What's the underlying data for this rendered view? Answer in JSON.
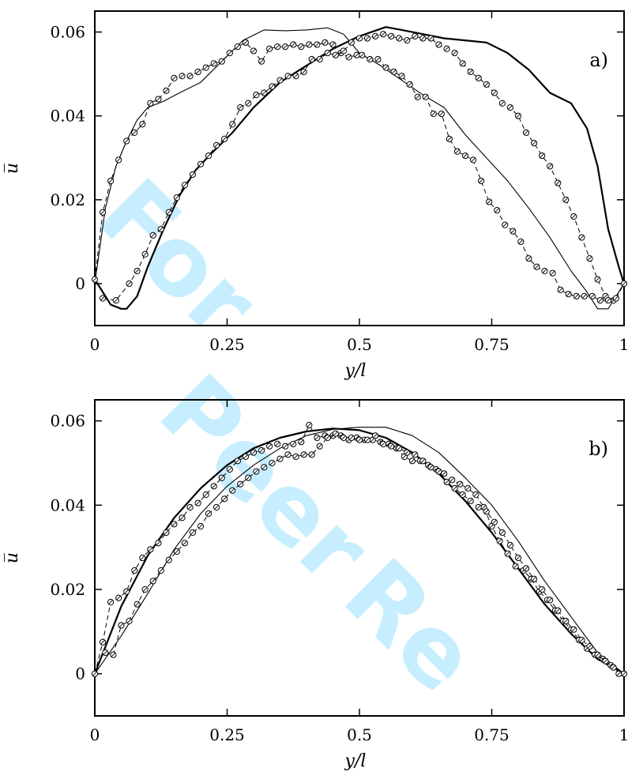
{
  "watermark": {
    "line1": "For",
    "line2": "Peer",
    "line3": "Re"
  },
  "chart_data": [
    {
      "type": "line",
      "panel_label": "a)",
      "xlabel": "y/l",
      "ylabel": "u̅",
      "xlim": [
        0,
        1
      ],
      "ylim": [
        -0.01,
        0.065
      ],
      "x_ticks": [
        "0",
        "0.25",
        "0.5",
        "0.75",
        "1"
      ],
      "x_tick_values": [
        0,
        0.25,
        0.5,
        0.75,
        1
      ],
      "y_ticks": [
        "0",
        "0.02",
        "0.04",
        "0.06"
      ],
      "y_tick_values": [
        0,
        0.02,
        0.04,
        0.06
      ],
      "grid": false,
      "series": [
        {
          "style": "thick",
          "x": [
            0,
            0.03,
            0.05,
            0.06,
            0.08,
            0.1,
            0.13,
            0.16,
            0.19,
            0.22,
            0.26,
            0.3,
            0.35,
            0.4,
            0.45,
            0.5,
            0.55,
            0.58,
            0.62,
            0.66,
            0.7,
            0.74,
            0.78,
            0.82,
            0.86,
            0.9,
            0.93,
            0.95,
            0.97,
            0.99,
            1.0
          ],
          "y": [
            0.001,
            -0.005,
            -0.006,
            -0.006,
            -0.003,
            0.004,
            0.013,
            0.021,
            0.027,
            0.031,
            0.036,
            0.042,
            0.048,
            0.052,
            0.056,
            0.059,
            0.0612,
            0.0605,
            0.0595,
            0.0585,
            0.058,
            0.0575,
            0.055,
            0.051,
            0.0455,
            0.043,
            0.037,
            0.028,
            0.013,
            0.004,
            0.0
          ]
        },
        {
          "style": "thin",
          "x": [
            0,
            0.02,
            0.04,
            0.06,
            0.08,
            0.1,
            0.13,
            0.16,
            0.2,
            0.24,
            0.28,
            0.32,
            0.36,
            0.4,
            0.44,
            0.47,
            0.5,
            0.54,
            0.58,
            0.62,
            0.66,
            0.7,
            0.74,
            0.78,
            0.82,
            0.86,
            0.9,
            0.93,
            0.95,
            0.97,
            1.0
          ],
          "y": [
            0.0,
            0.018,
            0.028,
            0.034,
            0.039,
            0.042,
            0.0435,
            0.0455,
            0.048,
            0.053,
            0.058,
            0.0605,
            0.0603,
            0.0605,
            0.061,
            0.0595,
            0.055,
            0.052,
            0.0485,
            0.045,
            0.042,
            0.0355,
            0.03,
            0.0245,
            0.018,
            0.011,
            0.003,
            -0.002,
            -0.006,
            -0.006,
            0.0
          ]
        },
        {
          "style": "dashed-circles",
          "x": [
            0,
            0.015,
            0.03,
            0.045,
            0.06,
            0.075,
            0.09,
            0.105,
            0.12,
            0.135,
            0.15,
            0.165,
            0.18,
            0.195,
            0.21,
            0.225,
            0.24,
            0.255,
            0.27,
            0.285,
            0.3,
            0.315,
            0.33,
            0.345,
            0.36,
            0.375,
            0.39,
            0.405,
            0.42,
            0.435,
            0.45,
            0.465,
            0.48,
            0.495
          ],
          "y": [
            0.001,
            0.017,
            0.0245,
            0.0295,
            0.034,
            0.036,
            0.038,
            0.043,
            0.044,
            0.046,
            0.049,
            0.0495,
            0.0495,
            0.0505,
            0.0515,
            0.0525,
            0.053,
            0.055,
            0.0565,
            0.0575,
            0.0555,
            0.053,
            0.056,
            0.0565,
            0.0565,
            0.057,
            0.0565,
            0.057,
            0.057,
            0.0575,
            0.057,
            0.055,
            0.054,
            0.0545
          ]
        },
        {
          "style": "dashed-circles",
          "x": [
            0.015,
            0.04,
            0.065,
            0.08,
            0.095,
            0.11,
            0.125,
            0.14,
            0.155,
            0.17,
            0.185,
            0.2,
            0.215,
            0.23,
            0.245,
            0.26,
            0.275,
            0.29,
            0.305,
            0.32,
            0.335,
            0.35,
            0.365,
            0.38,
            0.395,
            0.41,
            0.425,
            0.44,
            0.455,
            0.47,
            0.485,
            0.5,
            0.515,
            0.53,
            0.545,
            0.56,
            0.575,
            0.59,
            0.605,
            0.62,
            0.635,
            0.65,
            0.665,
            0.68,
            0.695,
            0.71,
            0.725,
            0.74,
            0.755,
            0.77,
            0.785,
            0.8,
            0.815,
            0.83,
            0.845,
            0.86,
            0.875,
            0.89,
            0.905,
            0.92,
            0.935,
            0.95,
            0.965,
            0.98
          ],
          "y": [
            -0.0035,
            -0.004,
            0.0,
            0.003,
            0.007,
            0.0115,
            0.013,
            0.017,
            0.0205,
            0.0235,
            0.026,
            0.0285,
            0.0305,
            0.033,
            0.0345,
            0.038,
            0.042,
            0.043,
            0.045,
            0.0455,
            0.047,
            0.0485,
            0.0495,
            0.0495,
            0.0505,
            0.0535,
            0.0535,
            0.055,
            0.0545,
            0.0555,
            0.0575,
            0.0585,
            0.0585,
            0.059,
            0.0595,
            0.059,
            0.0585,
            0.058,
            0.059,
            0.0585,
            0.0585,
            0.057,
            0.056,
            0.055,
            0.0525,
            0.0505,
            0.049,
            0.0475,
            0.0455,
            0.043,
            0.042,
            0.04,
            0.036,
            0.0335,
            0.0305,
            0.028,
            0.024,
            0.02,
            0.016,
            0.011,
            0.006,
            0.001,
            -0.003,
            -0.004
          ]
        },
        {
          "style": "dashed-circles",
          "x": [
            0.505,
            0.52,
            0.535,
            0.55,
            0.565,
            0.58,
            0.595,
            0.61,
            0.625,
            0.64,
            0.655,
            0.67,
            0.685,
            0.7,
            0.715,
            0.73,
            0.745,
            0.76,
            0.775,
            0.79,
            0.805,
            0.82,
            0.835,
            0.85,
            0.865,
            0.88,
            0.895,
            0.91,
            0.925,
            0.94,
            0.955,
            0.97,
            0.985,
            1.0
          ],
          "y": [
            0.0545,
            0.0535,
            0.0535,
            0.0515,
            0.0505,
            0.0495,
            0.0475,
            0.0445,
            0.0445,
            0.0405,
            0.0405,
            0.0345,
            0.0315,
            0.0305,
            0.0295,
            0.0245,
            0.0195,
            0.0175,
            0.014,
            0.0125,
            0.01,
            0.006,
            0.004,
            0.003,
            0.0025,
            -0.0015,
            -0.0025,
            -0.003,
            -0.003,
            -0.003,
            -0.004,
            -0.004,
            -0.0035,
            0.0
          ]
        }
      ]
    },
    {
      "type": "line",
      "panel_label": "b)",
      "xlabel": "y/l",
      "ylabel": "u̅",
      "xlim": [
        0,
        1
      ],
      "ylim": [
        -0.01,
        0.065
      ],
      "x_ticks": [
        "0",
        "0.25",
        "0.5",
        "0.75",
        "1"
      ],
      "x_tick_values": [
        0,
        0.25,
        0.5,
        0.75,
        1
      ],
      "y_ticks": [
        "0",
        "0.02",
        "0.04",
        "0.06"
      ],
      "y_tick_values": [
        0,
        0.02,
        0.04,
        0.06
      ],
      "grid": false,
      "series": [
        {
          "style": "thick",
          "x": [
            0,
            0.05,
            0.1,
            0.15,
            0.2,
            0.25,
            0.3,
            0.35,
            0.4,
            0.45,
            0.5,
            0.55,
            0.6,
            0.65,
            0.7,
            0.75,
            0.8,
            0.85,
            0.9,
            0.95,
            1.0
          ],
          "y": [
            0.0,
            0.016,
            0.028,
            0.037,
            0.044,
            0.0495,
            0.0535,
            0.056,
            0.0575,
            0.0582,
            0.0578,
            0.056,
            0.0525,
            0.0475,
            0.041,
            0.0335,
            0.025,
            0.0165,
            0.0095,
            0.0035,
            0.0
          ]
        },
        {
          "style": "thin",
          "x": [
            0,
            0.05,
            0.1,
            0.15,
            0.2,
            0.25,
            0.3,
            0.35,
            0.4,
            0.45,
            0.5,
            0.55,
            0.6,
            0.65,
            0.7,
            0.75,
            0.8,
            0.85,
            0.9,
            0.95,
            1.0
          ],
          "y": [
            0.0,
            0.009,
            0.019,
            0.0295,
            0.038,
            0.0445,
            0.0495,
            0.0535,
            0.0565,
            0.058,
            0.0585,
            0.0585,
            0.0565,
            0.0525,
            0.0465,
            0.04,
            0.0315,
            0.022,
            0.0135,
            0.005,
            0.0
          ]
        },
        {
          "style": "dashed-circles",
          "x": [
            0,
            0.015,
            0.03,
            0.045,
            0.06,
            0.075,
            0.09,
            0.105,
            0.12,
            0.135,
            0.15,
            0.165,
            0.18,
            0.195,
            0.21,
            0.225,
            0.24,
            0.255,
            0.27,
            0.285,
            0.3,
            0.315,
            0.33,
            0.345,
            0.36,
            0.375,
            0.39,
            0.405,
            0.42,
            0.435,
            0.45,
            0.465,
            0.48,
            0.495,
            0.51,
            0.525,
            0.54,
            0.555,
            0.57,
            0.585,
            0.6,
            0.615,
            0.63,
            0.645,
            0.66,
            0.675,
            0.69,
            0.705,
            0.72,
            0.735,
            0.75,
            0.765,
            0.78,
            0.795,
            0.81,
            0.825,
            0.84,
            0.855,
            0.87,
            0.885,
            0.9,
            0.915,
            0.93,
            0.945,
            0.96,
            0.975,
            0.99
          ],
          "y": [
            0.0,
            0.0075,
            0.017,
            0.018,
            0.0195,
            0.0245,
            0.0275,
            0.0295,
            0.031,
            0.0335,
            0.0355,
            0.037,
            0.0395,
            0.0405,
            0.0425,
            0.0445,
            0.0465,
            0.0485,
            0.0505,
            0.0515,
            0.0525,
            0.053,
            0.054,
            0.0545,
            0.054,
            0.0545,
            0.055,
            0.059,
            0.056,
            0.0565,
            0.0565,
            0.0565,
            0.0555,
            0.056,
            0.0555,
            0.0555,
            0.055,
            0.0545,
            0.0535,
            0.0515,
            0.0505,
            0.0505,
            0.0495,
            0.0485,
            0.0475,
            0.046,
            0.045,
            0.044,
            0.0425,
            0.0395,
            0.035,
            0.0315,
            0.0285,
            0.0255,
            0.0245,
            0.0225,
            0.0195,
            0.0175,
            0.015,
            0.0125,
            0.0105,
            0.008,
            0.006,
            0.0045,
            0.0035,
            0.002,
            0.0
          ]
        },
        {
          "style": "dashed-circles",
          "x": [
            0.02,
            0.035,
            0.05,
            0.065,
            0.08,
            0.095,
            0.11,
            0.125,
            0.14,
            0.155,
            0.17,
            0.185,
            0.2,
            0.215,
            0.23,
            0.245,
            0.26,
            0.275,
            0.29,
            0.305,
            0.32,
            0.335,
            0.35,
            0.365,
            0.38,
            0.395,
            0.41,
            0.425,
            0.44,
            0.455,
            0.47,
            0.485,
            0.5,
            0.515,
            0.53,
            0.545,
            0.56,
            0.575,
            0.59,
            0.605,
            0.62,
            0.635,
            0.65,
            0.665,
            0.68,
            0.695,
            0.71,
            0.725,
            0.74,
            0.755,
            0.77,
            0.785,
            0.8,
            0.815,
            0.83,
            0.845,
            0.86,
            0.875,
            0.89,
            0.905,
            0.92,
            0.935,
            0.95,
            0.965,
            0.98,
            1.0
          ],
          "y": [
            0.005,
            0.0045,
            0.0115,
            0.0125,
            0.0165,
            0.02,
            0.022,
            0.0245,
            0.027,
            0.029,
            0.031,
            0.0335,
            0.035,
            0.038,
            0.0395,
            0.0415,
            0.0435,
            0.045,
            0.0465,
            0.048,
            0.049,
            0.05,
            0.051,
            0.052,
            0.0515,
            0.052,
            0.052,
            0.054,
            0.056,
            0.057,
            0.056,
            0.056,
            0.0555,
            0.0555,
            0.0565,
            0.0545,
            0.054,
            0.0535,
            0.0525,
            0.052,
            0.0505,
            0.049,
            0.048,
            0.0455,
            0.044,
            0.0425,
            0.041,
            0.0395,
            0.0385,
            0.036,
            0.0335,
            0.0305,
            0.0275,
            0.025,
            0.0225,
            0.02,
            0.0175,
            0.015,
            0.0125,
            0.0105,
            0.008,
            0.0065,
            0.0045,
            0.003,
            0.0015,
            0.0
          ]
        }
      ]
    }
  ]
}
